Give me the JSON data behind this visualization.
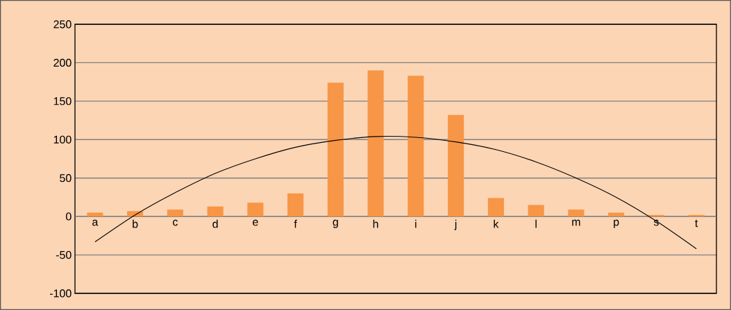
{
  "chart_data": {
    "type": "bar",
    "categories": [
      "a",
      "b",
      "c",
      "d",
      "e",
      "f",
      "g",
      "h",
      "i",
      "j",
      "k",
      "l",
      "m",
      "p",
      "s",
      "t"
    ],
    "series": [
      {
        "color": "#f79646",
        "values": [
          5,
          7,
          9,
          13,
          18,
          30,
          174,
          190,
          183,
          132,
          24,
          15,
          9,
          5,
          2,
          2
        ]
      },
      {
        "type": "line",
        "color": "#000000",
        "values": [
          -33,
          2,
          31,
          56,
          75,
          90,
          99,
          104,
          103,
          97,
          87,
          71,
          50,
          25,
          -6,
          -42
        ],
        "marker": "none",
        "line_style": "solid"
      }
    ],
    "ylim": [
      -100,
      250
    ],
    "yticks": [
      -100,
      -50,
      0,
      50,
      100,
      150,
      200,
      250
    ],
    "grid": "y"
  }
}
